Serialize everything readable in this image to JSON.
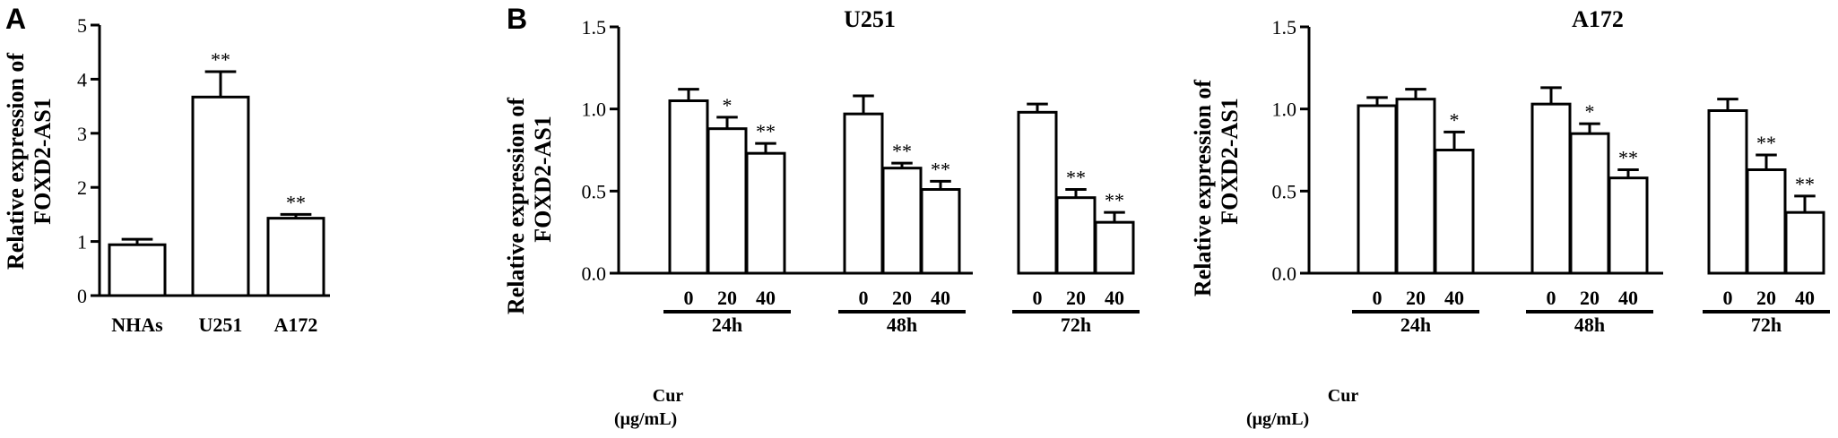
{
  "panel_labels": {
    "a": "A",
    "b": "B"
  },
  "y_axis_title_line1": "Relative expression of",
  "y_axis_title_line2": "FOXD2-AS1",
  "cur_label": "Cur",
  "cur_unit": "(μg/mL)",
  "colors": {
    "bar_fill": "#ffffff",
    "stroke": "#000000",
    "background": "#ffffff"
  },
  "chart_data": [
    {
      "type": "bar",
      "panel": "A",
      "title": "",
      "categories": [
        "NHAs",
        "U251",
        "A172"
      ],
      "values": [
        0.94,
        3.67,
        1.43
      ],
      "errors": [
        0.1,
        0.47,
        0.07
      ],
      "significance": [
        "",
        "**",
        "**"
      ],
      "ylim": [
        0,
        5
      ],
      "yticks": [
        "0",
        "1",
        "2",
        "3",
        "4",
        "5"
      ],
      "ylabel": "Relative expression of FOXD2-AS1",
      "xlabel": ""
    },
    {
      "type": "bar",
      "panel": "B",
      "title": "U251",
      "concentrations": [
        "0",
        "20",
        "40"
      ],
      "groups": [
        {
          "label": "24h",
          "values": [
            1.05,
            0.88,
            0.73
          ],
          "errors": [
            0.07,
            0.07,
            0.06
          ],
          "significance": [
            "",
            "*",
            "**"
          ]
        },
        {
          "label": "48h",
          "values": [
            0.97,
            0.64,
            0.51
          ],
          "errors": [
            0.11,
            0.03,
            0.05
          ],
          "significance": [
            "",
            "**",
            "**"
          ]
        },
        {
          "label": "72h",
          "values": [
            0.98,
            0.46,
            0.31
          ],
          "errors": [
            0.05,
            0.05,
            0.06
          ],
          "significance": [
            "",
            "**",
            "**"
          ]
        }
      ],
      "ylim": [
        0,
        1.5
      ],
      "yticks": [
        "0.0",
        "0.5",
        "1.0",
        "1.5"
      ],
      "ylabel": "Relative expression of FOXD2-AS1",
      "xlabel": ""
    },
    {
      "type": "bar",
      "panel": "B",
      "title": "A172",
      "concentrations": [
        "0",
        "20",
        "40"
      ],
      "groups": [
        {
          "label": "24h",
          "values": [
            1.02,
            1.06,
            0.75
          ],
          "errors": [
            0.05,
            0.06,
            0.11
          ],
          "significance": [
            "",
            "",
            "*"
          ]
        },
        {
          "label": "48h",
          "values": [
            1.03,
            0.85,
            0.58
          ],
          "errors": [
            0.1,
            0.06,
            0.05
          ],
          "significance": [
            "",
            "*",
            "**"
          ]
        },
        {
          "label": "72h",
          "values": [
            0.99,
            0.63,
            0.37
          ],
          "errors": [
            0.07,
            0.09,
            0.1
          ],
          "significance": [
            "",
            "**",
            "**"
          ]
        }
      ],
      "ylim": [
        0,
        1.5
      ],
      "yticks": [
        "0.0",
        "0.5",
        "1.0",
        "1.5"
      ],
      "ylabel": "Relative expression of FOXD2-AS1",
      "xlabel": ""
    }
  ]
}
